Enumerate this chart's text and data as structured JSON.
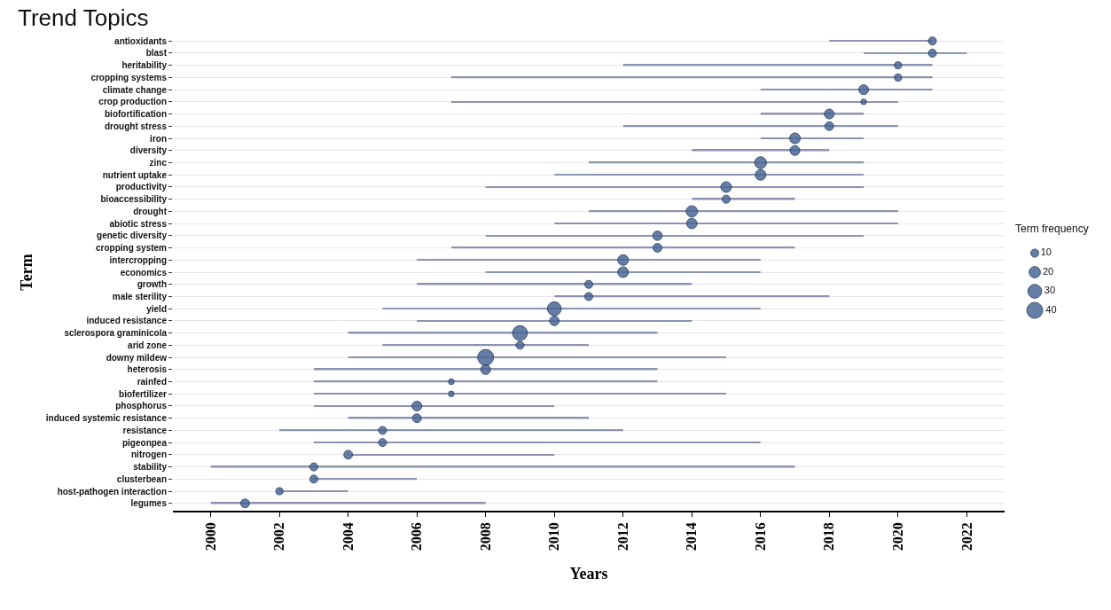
{
  "chart_data": {
    "type": "bubble",
    "title": "Trend Topics",
    "xlabel": "Years",
    "ylabel": "Term",
    "legend_title": "Term frequency",
    "orientation": "horizontal",
    "categories": [
      "antioxidants",
      "blast",
      "heritability",
      "cropping systems",
      "climate change",
      "crop production",
      "biofortification",
      "drought stress",
      "iron",
      "diversity",
      "zinc",
      "nutrient uptake",
      "productivity",
      "bioaccessibility",
      "drought",
      "abiotic stress",
      "genetic diversity",
      "cropping system",
      "intercropping",
      "economics",
      "growth",
      "male sterility",
      "yield",
      "induced resistance",
      "sclerospora graminicola",
      "arid zone",
      "downy mildew",
      "heterosis",
      "rainfed",
      "biofertilizer",
      "phosphorus",
      "induced systemic resistance",
      "resistance",
      "pigeonpea",
      "nitrogen",
      "stability",
      "clusterbean",
      "host-pathogen interaction",
      "legumes"
    ],
    "series": [
      {
        "type": "bar",
        "color": "#8b93ad",
        "base": [
          2018,
          2019,
          2012,
          2007,
          2016,
          2007,
          2016,
          2012,
          2016,
          2014,
          2011,
          2010,
          2008,
          2014,
          2011,
          2010,
          2008,
          2007,
          2006,
          2008,
          2006,
          2010,
          2005,
          2006,
          2004,
          2005,
          2004,
          2003,
          2003,
          2003,
          2003,
          2004,
          2002,
          2003,
          2004,
          2000,
          2003,
          2002,
          2000
        ],
        "values": [
          3,
          3,
          9,
          14,
          5,
          13,
          3,
          8,
          3,
          4,
          8,
          9,
          11,
          3,
          9,
          10,
          11,
          10,
          10,
          8,
          8,
          8,
          11,
          8,
          9,
          6,
          11,
          10,
          10,
          12,
          7,
          7,
          10,
          13,
          6,
          17,
          3,
          2,
          8
        ]
      },
      {
        "color": "#4a6897",
        "values": [
          2021,
          2021,
          2020,
          2020,
          2019,
          2019,
          2018,
          2018,
          2017,
          2017,
          2016,
          2016,
          2015,
          2015,
          2014,
          2014,
          2013,
          2013,
          2012,
          2012,
          2011,
          2011,
          2010,
          2010,
          2009,
          2009,
          2008,
          2008,
          2007,
          2007,
          2006,
          2006,
          2005,
          2005,
          2004,
          2003,
          2003,
          2002,
          2001
        ],
        "sizes": [
          10,
          10,
          8,
          8,
          15,
          5,
          15,
          12,
          18,
          15,
          22,
          18,
          18,
          10,
          20,
          17,
          14,
          12,
          18,
          18,
          10,
          10,
          30,
          14,
          35,
          10,
          40,
          15,
          5,
          5,
          15,
          12,
          10,
          10,
          12,
          10,
          10,
          8,
          12
        ]
      }
    ],
    "size_legend": [
      10,
      20,
      30,
      40
    ],
    "grid": "y",
    "xlim": [
      1998.9,
      2023.1
    ],
    "xticks": [
      2000,
      2002,
      2004,
      2006,
      2008,
      2010,
      2012,
      2014,
      2016,
      2018,
      2020,
      2022
    ]
  }
}
